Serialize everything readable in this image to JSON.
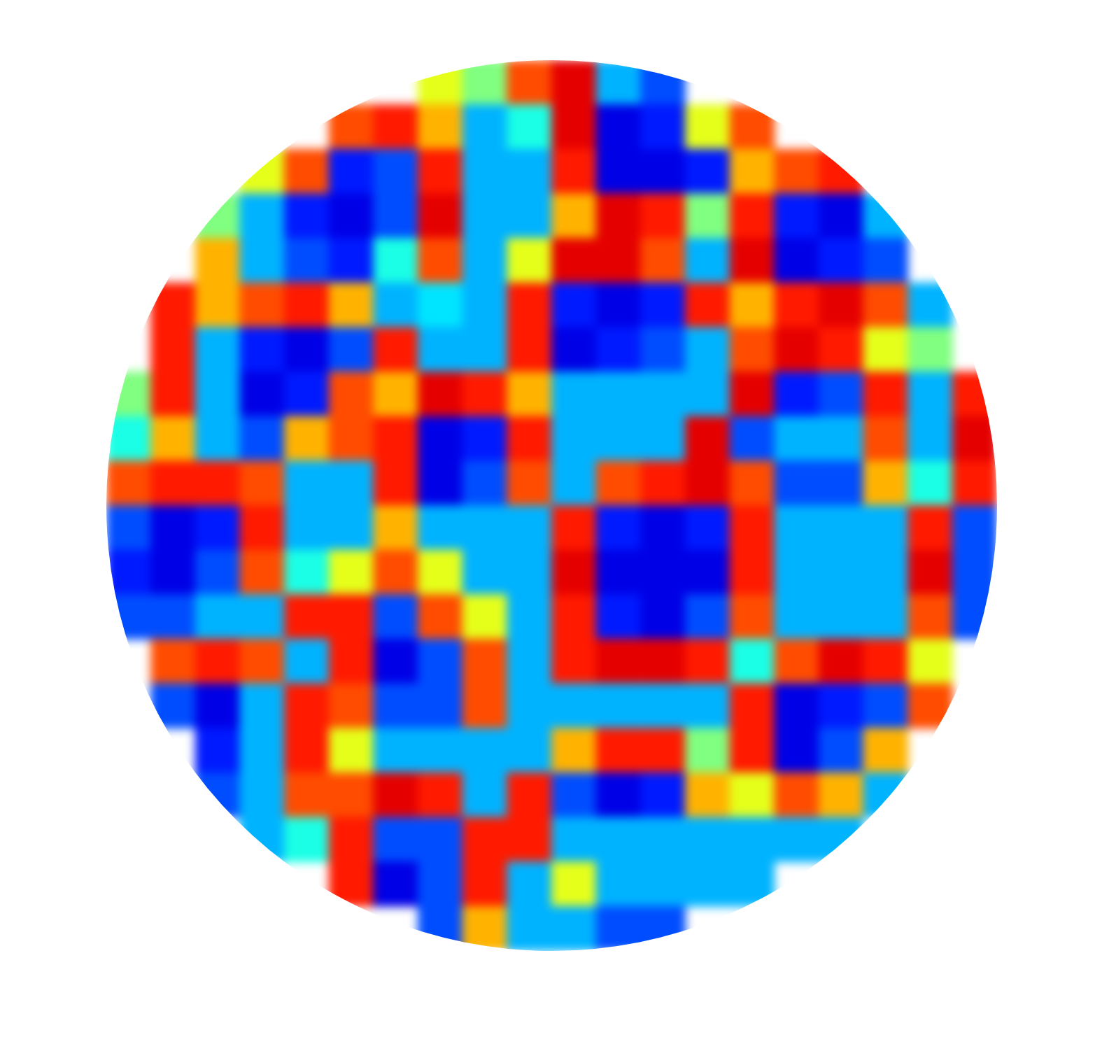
{
  "chart_data": {
    "type": "heatmap",
    "color": "jet",
    "tick_labels": false,
    "xlim": [
      0,
      20
    ],
    "ylim": [
      0,
      20
    ],
    "zlim": [
      0,
      1
    ],
    "cells": [
      [
        null,
        null,
        null,
        null,
        null,
        null,
        null,
        0.6,
        0.5,
        0.8,
        0.9,
        0.3,
        0.2,
        null,
        null,
        null,
        null,
        null,
        null,
        null
      ],
      [
        null,
        null,
        null,
        null,
        null,
        0.8,
        0.85,
        0.7,
        0.3,
        0.4,
        0.9,
        0.1,
        0.15,
        0.6,
        0.8,
        null,
        null,
        null,
        null,
        null
      ],
      [
        null,
        null,
        null,
        0.6,
        0.8,
        0.15,
        0.2,
        0.85,
        0.3,
        0.3,
        0.85,
        0.1,
        0.1,
        0.15,
        0.7,
        0.8,
        0.85,
        null,
        null,
        null
      ],
      [
        null,
        null,
        0.5,
        0.3,
        0.15,
        0.1,
        0.2,
        0.9,
        0.3,
        0.3,
        0.7,
        0.9,
        0.85,
        0.5,
        0.85,
        0.15,
        0.1,
        0.3,
        null,
        null
      ],
      [
        null,
        null,
        0.7,
        0.3,
        0.2,
        0.15,
        0.4,
        0.8,
        0.3,
        0.6,
        0.9,
        0.9,
        0.8,
        0.3,
        0.9,
        0.1,
        0.15,
        0.2,
        null,
        null
      ],
      [
        null,
        0.85,
        0.7,
        0.8,
        0.85,
        0.7,
        0.3,
        0.35,
        0.3,
        0.85,
        0.15,
        0.1,
        0.15,
        0.85,
        0.7,
        0.85,
        0.9,
        0.8,
        0.3,
        null
      ],
      [
        null,
        0.85,
        0.3,
        0.15,
        0.1,
        0.2,
        0.85,
        0.3,
        0.3,
        0.85,
        0.1,
        0.15,
        0.2,
        0.3,
        0.8,
        0.9,
        0.85,
        0.6,
        0.5,
        null
      ],
      [
        0.5,
        0.85,
        0.3,
        0.1,
        0.15,
        0.8,
        0.7,
        0.9,
        0.85,
        0.7,
        0.3,
        0.3,
        0.3,
        0.3,
        0.9,
        0.15,
        0.2,
        0.85,
        0.3,
        0.85
      ],
      [
        0.4,
        0.7,
        0.3,
        0.2,
        0.7,
        0.8,
        0.85,
        0.1,
        0.15,
        0.85,
        0.3,
        0.3,
        0.3,
        0.9,
        0.2,
        0.3,
        0.3,
        0.8,
        0.3,
        0.9
      ],
      [
        0.8,
        0.85,
        0.85,
        0.8,
        0.3,
        0.3,
        0.85,
        0.1,
        0.2,
        0.8,
        0.3,
        0.8,
        0.85,
        0.9,
        0.8,
        0.2,
        0.2,
        0.7,
        0.4,
        0.85
      ],
      [
        0.2,
        0.1,
        0.15,
        0.85,
        0.3,
        0.3,
        0.7,
        0.3,
        0.3,
        0.3,
        0.85,
        0.15,
        0.1,
        0.15,
        0.85,
        0.3,
        0.3,
        0.3,
        0.85,
        0.2
      ],
      [
        0.15,
        0.1,
        0.2,
        0.8,
        0.4,
        0.6,
        0.8,
        0.6,
        0.3,
        0.3,
        0.9,
        0.1,
        0.1,
        0.1,
        0.85,
        0.3,
        0.3,
        0.3,
        0.9,
        0.2
      ],
      [
        0.2,
        0.2,
        0.3,
        0.3,
        0.85,
        0.85,
        0.2,
        0.8,
        0.6,
        0.3,
        0.85,
        0.15,
        0.1,
        0.2,
        0.8,
        0.3,
        0.3,
        0.3,
        0.8,
        0.2
      ],
      [
        null,
        0.8,
        0.85,
        0.8,
        0.3,
        0.85,
        0.1,
        0.2,
        0.8,
        0.3,
        0.85,
        0.9,
        0.9,
        0.85,
        0.4,
        0.8,
        0.9,
        0.85,
        0.6,
        null
      ],
      [
        null,
        0.2,
        0.1,
        0.3,
        0.85,
        0.8,
        0.2,
        0.2,
        0.8,
        0.3,
        0.3,
        0.3,
        0.3,
        0.3,
        0.85,
        0.1,
        0.15,
        0.2,
        0.8,
        null
      ],
      [
        null,
        null,
        0.15,
        0.3,
        0.85,
        0.6,
        0.3,
        0.3,
        0.3,
        0.3,
        0.7,
        0.85,
        0.85,
        0.5,
        0.85,
        0.1,
        0.2,
        0.7,
        null,
        null
      ],
      [
        null,
        null,
        0.2,
        0.3,
        0.8,
        0.8,
        0.9,
        0.85,
        0.3,
        0.85,
        0.2,
        0.1,
        0.15,
        0.7,
        0.6,
        0.8,
        0.7,
        0.3,
        null,
        null
      ],
      [
        null,
        null,
        null,
        0.3,
        0.4,
        0.85,
        0.2,
        0.2,
        0.85,
        0.85,
        0.3,
        0.3,
        0.3,
        0.3,
        0.3,
        0.3,
        0.3,
        null,
        null,
        null
      ],
      [
        null,
        null,
        null,
        null,
        null,
        0.85,
        0.1,
        0.2,
        0.85,
        0.3,
        0.6,
        0.3,
        0.3,
        0.3,
        0.3,
        null,
        null,
        null,
        null,
        null
      ],
      [
        null,
        null,
        null,
        null,
        null,
        null,
        null,
        0.2,
        0.7,
        0.3,
        0.3,
        0.2,
        0.2,
        null,
        null,
        null,
        null,
        null,
        null,
        null
      ]
    ]
  }
}
